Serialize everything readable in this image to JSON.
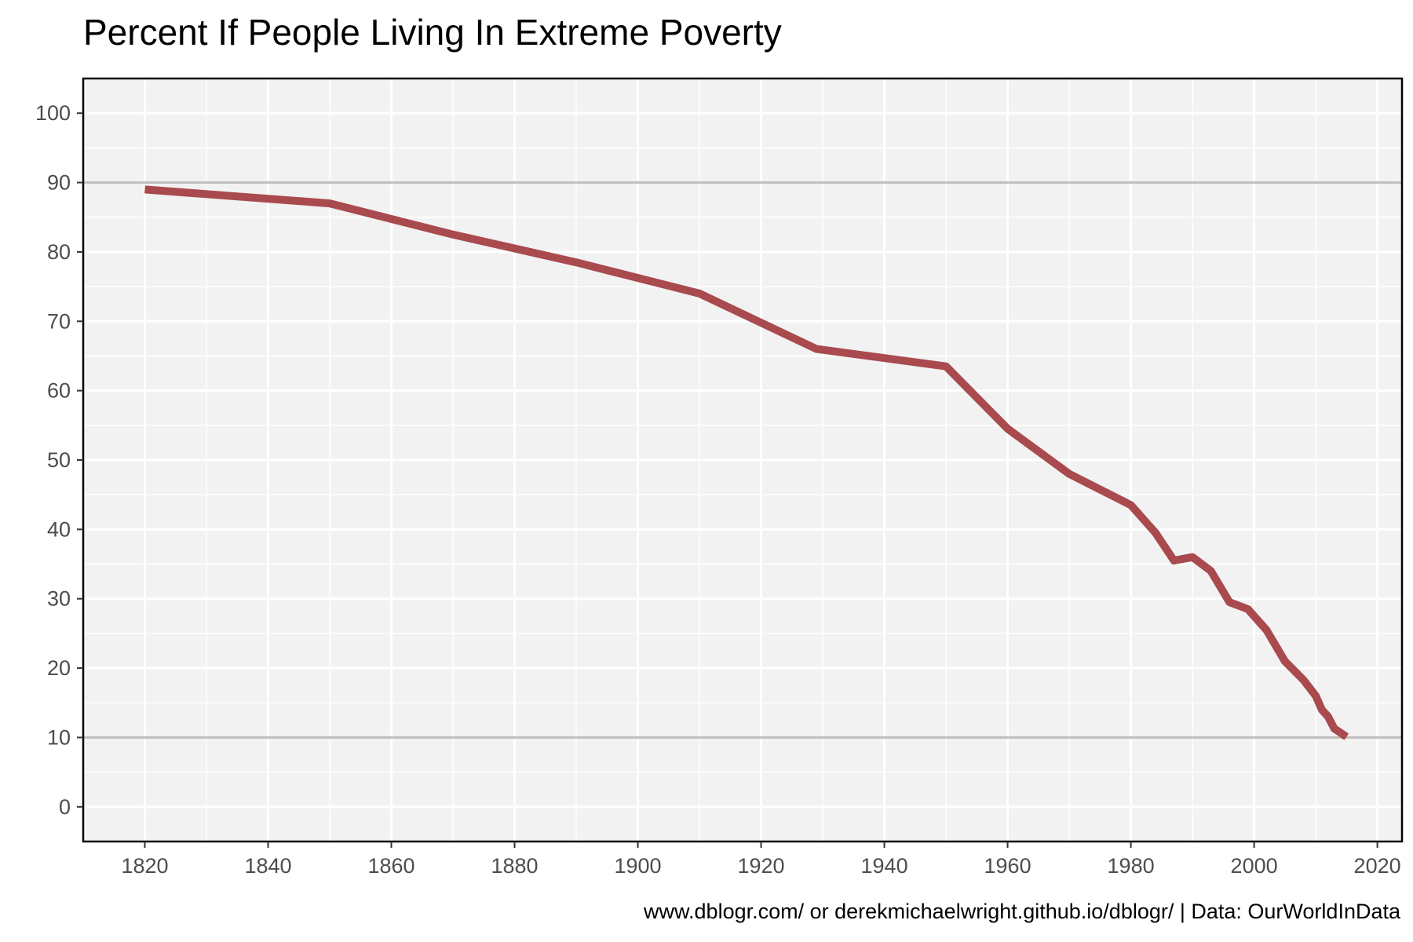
{
  "chart_data": {
    "type": "line",
    "title": "Percent If People Living In Extreme Poverty",
    "caption": "www.dblogr.com/ or derekmichaelwright.github.io/dblogr/ | Data: OurWorldInData",
    "xlabel": "",
    "ylabel": "",
    "xlim": [
      1810,
      2024
    ],
    "ylim": [
      -5,
      105
    ],
    "x_ticks": [
      1820,
      1840,
      1860,
      1880,
      1900,
      1920,
      1940,
      1960,
      1980,
      2000,
      2020
    ],
    "y_ticks": [
      0,
      10,
      20,
      30,
      40,
      50,
      60,
      70,
      80,
      90,
      100
    ],
    "grid": true,
    "legend": "none",
    "reference_lines": [
      90,
      10
    ],
    "colors": {
      "line": "#a94a4e",
      "panel": "#f2f2f2",
      "grid": "#ffffff",
      "reference": "#bfbfbf"
    },
    "series": [
      {
        "x": [
          1820,
          1850,
          1870,
          1890,
          1910,
          1929,
          1950,
          1960,
          1970,
          1980,
          1984,
          1987,
          1990,
          1993,
          1996,
          1999,
          2002,
          2005,
          2008,
          2010,
          2011,
          2012,
          2013,
          2015
        ],
        "y": [
          89,
          87,
          82.5,
          78.5,
          74,
          66,
          63.5,
          54.5,
          48,
          43.5,
          39.5,
          35.5,
          36,
          34,
          29.5,
          28.5,
          25.5,
          21,
          18.3,
          16,
          14,
          13,
          11.3,
          10.1
        ]
      }
    ]
  }
}
